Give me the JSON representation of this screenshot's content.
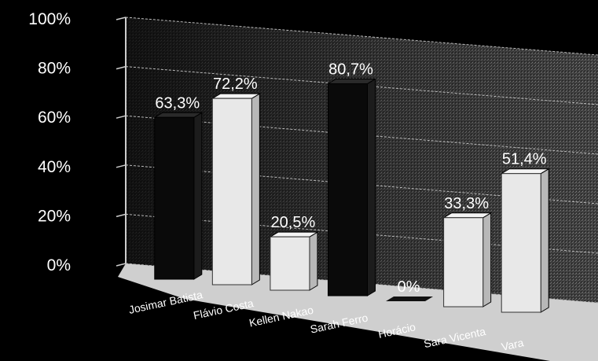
{
  "chart_data": {
    "type": "bar",
    "categories": [
      "Josimar Batista",
      "Flávio Costa",
      "Kellen Nakao",
      "Sarah Ferro",
      "Horácio",
      "Sara Vicenta",
      "Vara"
    ],
    "values": [
      63.3,
      72.2,
      20.5,
      80.7,
      0,
      33.3,
      51.4
    ],
    "data_labels": [
      "63,3%",
      "72,2%",
      "20,5%",
      "80,7%",
      "0%",
      "33,3%",
      "51,4%"
    ],
    "y_ticks": [
      "0%",
      "20%",
      "40%",
      "60%",
      "80%",
      "100%"
    ],
    "ylim": [
      0,
      100
    ],
    "grid": true,
    "style": "3d",
    "colors": {
      "background": "#000000",
      "bar_dark": "#0a0a0a",
      "bar_light": "#e8e8e8",
      "wall": "#3a3a3a",
      "floor": "#cfcfcf",
      "text": "#ffffff"
    },
    "bar_fills": [
      "dark",
      "light",
      "light",
      "dark",
      "dark",
      "light",
      "light"
    ]
  }
}
